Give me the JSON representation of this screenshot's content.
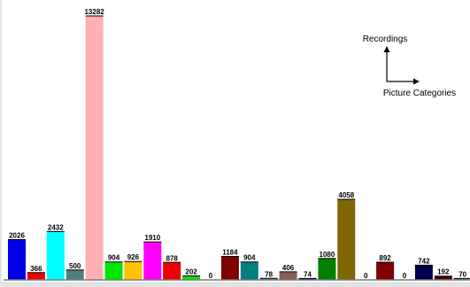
{
  "chart_data": {
    "type": "bar",
    "values": [
      2026,
      366,
      2432,
      500,
      13282,
      904,
      926,
      1910,
      878,
      202,
      0,
      1184,
      904,
      78,
      406,
      74,
      1080,
      4058,
      0,
      892,
      0,
      742,
      192,
      70
    ],
    "colors": [
      "#0000e6",
      "#ee0000",
      "#00ffff",
      "#4f8080",
      "#ffb0b0",
      "#00e600",
      "#ffc000",
      "#ff00ff",
      "#ee0000",
      "#00e600",
      "#00e600",
      "#800000",
      "#008080",
      "#808080",
      "#8b5a5a",
      "#0000b0",
      "#008000",
      "#806600",
      "#806600",
      "#800000",
      "#800000",
      "#000050",
      "#500000",
      "#808080"
    ],
    "ylim": [
      0,
      13282
    ],
    "legend_box": {
      "y_axis_label": "Recordings",
      "x_axis_label": "Picture Categories"
    },
    "grid": false
  }
}
